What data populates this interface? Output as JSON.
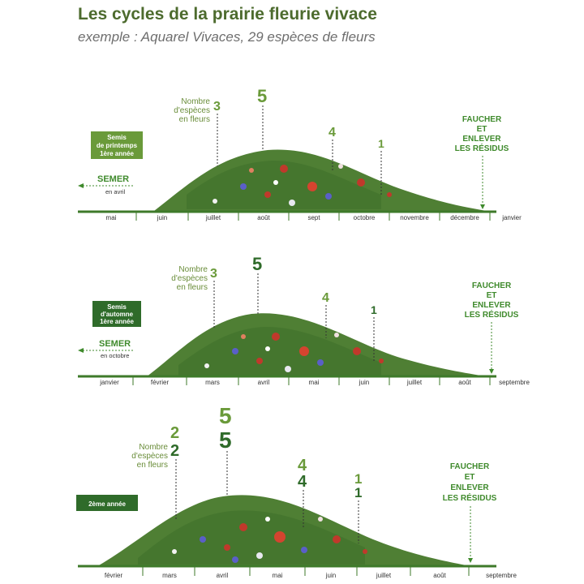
{
  "header": {
    "title": "Les cycles de la prairie fleurie vivace",
    "subtitle": "exemple : Aquarel Vivaces, 29 espèces de fleurs"
  },
  "colors": {
    "meadow": "#4f7f34",
    "meadow_dark": "#2f5f26",
    "badge_light": "#6a9a3a",
    "badge_dark": "#2f6b2a",
    "accent": "#3f8a2c",
    "poppy": "#c0392b",
    "cornflower": "#5a5fc8"
  },
  "panels": [
    {
      "badge": [
        "Semis",
        "de printemps",
        "1ère année"
      ],
      "semer": {
        "label": "SEMER",
        "sub": "en avril"
      },
      "species_label": [
        "Nombre",
        "d'espèces",
        "en fleurs"
      ],
      "numbers": [
        "3",
        "5",
        "4",
        "1"
      ],
      "action": [
        "FAUCHER",
        "ET",
        "ENLEVER",
        "LES RÉSIDUS"
      ],
      "months": [
        "mai",
        "juin",
        "juillet",
        "août",
        "sept",
        "octobre",
        "novembre",
        "décembre",
        "janvier"
      ]
    },
    {
      "badge": [
        "Semis",
        "d'automne",
        "1ère année"
      ],
      "semer": {
        "label": "SEMER",
        "sub": "en octobre"
      },
      "species_label": [
        "Nombre",
        "d'espèces",
        "en fleurs"
      ],
      "numbers": [
        "3",
        "5",
        "4",
        "1"
      ],
      "action": [
        "FAUCHER",
        "ET",
        "ENLEVER",
        "LES RÉSIDUS"
      ],
      "months": [
        "janvier",
        "février",
        "mars",
        "avril",
        "mai",
        "juin",
        "juillet",
        "août",
        "septembre"
      ]
    },
    {
      "badge": [
        "2ème année"
      ],
      "species_label": [
        "Nombre",
        "d'espèces",
        "en fleurs"
      ],
      "numbers": [
        "2",
        "2",
        "5",
        "5",
        "4",
        "4",
        "1",
        "1"
      ],
      "action": [
        "FAUCHER",
        "ET",
        "ENLEVER",
        "LES RÉSIDUS"
      ],
      "months": [
        "février",
        "mars",
        "avril",
        "mai",
        "juin",
        "juillet",
        "août",
        "septembre"
      ]
    }
  ]
}
